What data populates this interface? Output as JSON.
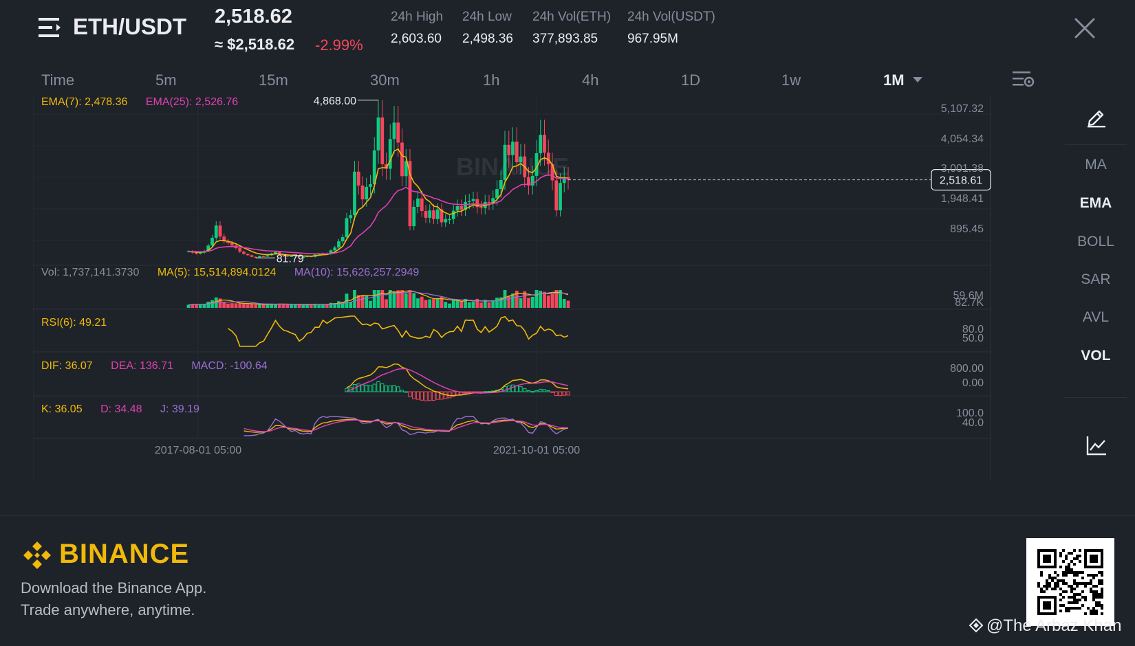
{
  "header": {
    "pair": "ETH/USDT",
    "price": "2,518.62",
    "approx_price": "≈ $2,518.62",
    "change": "-2.99%",
    "stats": [
      {
        "label": "24h High",
        "value": "2,603.60"
      },
      {
        "label": "24h Low",
        "value": "2,498.36"
      },
      {
        "label": "24h Vol(ETH)",
        "value": "377,893.85"
      },
      {
        "label": "24h Vol(USDT)",
        "value": "967.95M"
      }
    ]
  },
  "timeframes": [
    "Time",
    "5m",
    "15m",
    "30m",
    "1h",
    "4h",
    "1D",
    "1w",
    "1M"
  ],
  "active_timeframe": "1M",
  "indicators": {
    "ema": {
      "ema7": "EMA(7): 2,478.36",
      "ema25": "EMA(25): 2,526.76"
    },
    "vol": {
      "vol": "Vol: 1,737,141.3730",
      "ma5": "MA(5): 15,514,894.0124",
      "ma10": "MA(10): 15,626,257.2949"
    },
    "rsi": {
      "rsi6": "RSI(6): 49.21"
    },
    "macd": {
      "dif": "DIF: 36.07",
      "dea": "DEA: 136.71",
      "macd": "MACD: -100.64"
    },
    "kdj": {
      "k": "K: 36.05",
      "d": "D: 34.48",
      "j": "J: 39.19"
    }
  },
  "price_axis": [
    "5,107.32",
    "4,054.34",
    "3,001.38",
    "1,948.41",
    "895.45"
  ],
  "current_price_tag": "2,518.61",
  "high_marker": "4,868.00",
  "low_marker": "81.79",
  "vol_axis": [
    "59.6M",
    "82.7K"
  ],
  "rsi_axis": [
    "80.0",
    "50.0"
  ],
  "macd_axis": [
    "800.00",
    "0.00"
  ],
  "kdj_axis": [
    "100.0",
    "40.0"
  ],
  "time_axis": [
    "2017-08-01 05:00",
    "2021-10-01 05:00"
  ],
  "watermark": "BINANCE",
  "right_toolbar": [
    "MA",
    "EMA",
    "BOLL",
    "SAR",
    "AVL",
    "VOL"
  ],
  "right_toolbar_active": [
    "EMA",
    "VOL"
  ],
  "footer": {
    "brand": "BINANCE",
    "tagline1": "Download the Binance App.",
    "tagline2": "Trade anywhere, anytime.",
    "credit": "@The Arbaz Khan"
  },
  "colors": {
    "up": "#0ecb81",
    "down": "#f6465d",
    "ema7": "#f0b90b",
    "ema25": "#e040b4",
    "ma10": "#9b6fd6",
    "accent": "#f0b90b"
  },
  "chart_data": {
    "type": "candlestick",
    "interval": "1M",
    "ylim": [
      81.79,
      5107.32
    ],
    "close_series": [
      300,
      260,
      230,
      260,
      310,
      480,
      720,
      1100,
      760,
      610,
      560,
      480,
      400,
      290,
      220,
      180,
      130,
      110,
      150,
      140,
      180,
      230,
      280,
      200,
      170,
      140,
      150,
      180,
      130,
      130,
      150,
      130,
      200,
      230,
      240,
      220,
      330,
      420,
      610,
      740,
      1330,
      1420,
      2770,
      2340,
      1910,
      2300,
      2380,
      3430,
      4450,
      3000,
      2860,
      3780,
      4290,
      3670,
      2630,
      3100,
      1080,
      1680,
      1940,
      1550,
      1340,
      1570,
      1300,
      1600,
      1200,
      1300,
      1300,
      1560,
      1700,
      1590,
      1830,
      1860,
      1920,
      1670,
      1640,
      1830,
      1800,
      1950,
      2230,
      2510,
      3600,
      3280,
      3700,
      3060,
      3240,
      2600,
      2340,
      2640,
      3340,
      3910,
      3360,
      3000,
      2500,
      1570,
      2420,
      2600,
      2518
    ]
  }
}
